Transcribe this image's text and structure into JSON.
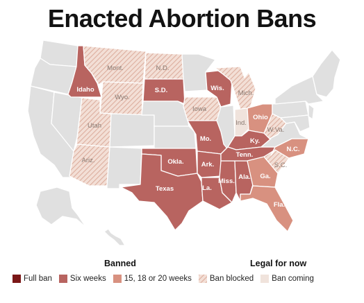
{
  "title": "Enacted Abortion Bans",
  "colors": {
    "full_ban": "#7a1717",
    "six_weeks": "#b86460",
    "weeks_15_18_20": "#d89180",
    "ban_blocked_fill": "#f3dfd6",
    "ban_blocked_hatch": "#dcae9e",
    "ban_coming": "#f0e3dc",
    "no_ban": "#e0e0e0",
    "border": "#ffffff"
  },
  "legend": {
    "banned_heading": "Banned",
    "legal_heading": "Legal for now",
    "items": [
      {
        "key": "full_ban",
        "label": "Full ban"
      },
      {
        "key": "six_weeks",
        "label": "Six weeks"
      },
      {
        "key": "weeks_15_18_20",
        "label": "15, 18 or 20 weeks"
      },
      {
        "key": "ban_blocked",
        "label": "Ban blocked"
      },
      {
        "key": "ban_coming",
        "label": "Ban coming"
      }
    ]
  },
  "states": {
    "idaho": {
      "label": "Idaho",
      "status": "six_weeks"
    },
    "sd": {
      "label": "S.D.",
      "status": "six_weeks"
    },
    "wis": {
      "label": "Wis.",
      "status": "six_weeks"
    },
    "mo": {
      "label": "Mo.",
      "status": "six_weeks"
    },
    "okla": {
      "label": "Okla.",
      "status": "six_weeks"
    },
    "ark": {
      "label": "Ark.",
      "status": "six_weeks"
    },
    "texas": {
      "label": "Texas",
      "status": "six_weeks"
    },
    "la": {
      "label": "La.",
      "status": "six_weeks"
    },
    "miss": {
      "label": "Miss.",
      "status": "six_weeks"
    },
    "ala": {
      "label": "Ala.",
      "status": "six_weeks"
    },
    "tenn": {
      "label": "Tenn.",
      "status": "six_weeks"
    },
    "ky": {
      "label": "Ky.",
      "status": "six_weeks"
    },
    "ohio": {
      "label": "Ohio",
      "status": "weeks_15_18_20"
    },
    "ga": {
      "label": "Ga.",
      "status": "weeks_15_18_20"
    },
    "fla": {
      "label": "Fla.",
      "status": "weeks_15_18_20"
    },
    "nc": {
      "label": "N.C.",
      "status": "weeks_15_18_20"
    },
    "mont": {
      "label": "Mont.",
      "status": "ban_blocked"
    },
    "nd": {
      "label": "N.D.",
      "status": "ban_blocked"
    },
    "wyo": {
      "label": "Wyo.",
      "status": "ban_blocked"
    },
    "utah": {
      "label": "Utah",
      "status": "ban_blocked"
    },
    "ariz": {
      "label": "Ariz.",
      "status": "ban_blocked"
    },
    "iowa": {
      "label": "Iowa",
      "status": "ban_blocked"
    },
    "mich": {
      "label": "Mich.",
      "status": "ban_blocked"
    },
    "wva": {
      "label": "W.Va.",
      "status": "ban_blocked"
    },
    "sc": {
      "label": "S.C.",
      "status": "ban_blocked"
    },
    "ind": {
      "label": "Ind.",
      "status": "ban_coming"
    }
  }
}
